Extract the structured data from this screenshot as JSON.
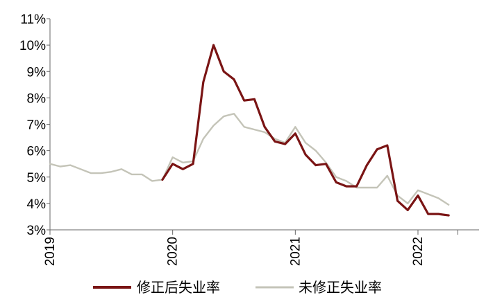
{
  "chart_data": {
    "type": "line",
    "title": "",
    "xlabel": "",
    "ylabel": "",
    "x_tick_labels": [
      "2019",
      "2020",
      "2021",
      "2022"
    ],
    "y_tick_labels": [
      "3%",
      "4%",
      "5%",
      "6%",
      "7%",
      "8%",
      "9%",
      "10%",
      "11%"
    ],
    "ylim": [
      3,
      11
    ],
    "xlim": [
      "2019-01",
      "2022-05"
    ],
    "grid": false,
    "legend_position": "bottom",
    "series": [
      {
        "name": "修正后失业率",
        "color": "#7a1414",
        "points": [
          [
            "2019-12",
            4.9
          ],
          [
            "2020-01",
            5.5
          ],
          [
            "2020-02",
            5.3
          ],
          [
            "2020-03",
            5.5
          ],
          [
            "2020-04",
            8.6
          ],
          [
            "2020-05",
            10.0
          ],
          [
            "2020-06",
            9.0
          ],
          [
            "2020-07",
            8.7
          ],
          [
            "2020-08",
            7.9
          ],
          [
            "2020-09",
            7.95
          ],
          [
            "2020-10",
            6.9
          ],
          [
            "2020-11",
            6.35
          ],
          [
            "2020-12",
            6.25
          ],
          [
            "2021-01",
            6.65
          ],
          [
            "2021-02",
            5.85
          ],
          [
            "2021-03",
            5.45
          ],
          [
            "2021-04",
            5.5
          ],
          [
            "2021-05",
            4.8
          ],
          [
            "2021-06",
            4.65
          ],
          [
            "2021-07",
            4.65
          ],
          [
            "2021-08",
            5.45
          ],
          [
            "2021-09",
            6.05
          ],
          [
            "2021-10",
            6.2
          ],
          [
            "2021-11",
            4.1
          ],
          [
            "2021-12",
            3.75
          ],
          [
            "2022-01",
            4.3
          ],
          [
            "2022-02",
            3.6
          ],
          [
            "2022-03",
            3.6
          ],
          [
            "2022-04",
            3.55
          ]
        ]
      },
      {
        "name": "未修正失业率",
        "color": "#c4c4b8",
        "points": [
          [
            "2019-01",
            5.5
          ],
          [
            "2019-02",
            5.4
          ],
          [
            "2019-03",
            5.45
          ],
          [
            "2019-04",
            5.3
          ],
          [
            "2019-05",
            5.15
          ],
          [
            "2019-06",
            5.15
          ],
          [
            "2019-07",
            5.2
          ],
          [
            "2019-08",
            5.3
          ],
          [
            "2019-09",
            5.1
          ],
          [
            "2019-10",
            5.1
          ],
          [
            "2019-11",
            4.85
          ],
          [
            "2019-12",
            4.9
          ],
          [
            "2020-01",
            5.75
          ],
          [
            "2020-02",
            5.55
          ],
          [
            "2020-03",
            5.6
          ],
          [
            "2020-04",
            6.45
          ],
          [
            "2020-05",
            6.95
          ],
          [
            "2020-06",
            7.3
          ],
          [
            "2020-07",
            7.4
          ],
          [
            "2020-08",
            6.9
          ],
          [
            "2020-09",
            6.8
          ],
          [
            "2020-10",
            6.7
          ],
          [
            "2020-11",
            6.45
          ],
          [
            "2020-12",
            6.3
          ],
          [
            "2021-01",
            6.9
          ],
          [
            "2021-02",
            6.3
          ],
          [
            "2021-03",
            6.0
          ],
          [
            "2021-04",
            5.55
          ],
          [
            "2021-05",
            5.0
          ],
          [
            "2021-06",
            4.85
          ],
          [
            "2021-07",
            4.6
          ],
          [
            "2021-08",
            4.6
          ],
          [
            "2021-09",
            4.6
          ],
          [
            "2021-10",
            5.05
          ],
          [
            "2021-11",
            4.3
          ],
          [
            "2021-12",
            4.0
          ],
          [
            "2022-01",
            4.5
          ],
          [
            "2022-02",
            4.35
          ],
          [
            "2022-03",
            4.2
          ],
          [
            "2022-04",
            3.95
          ]
        ]
      }
    ]
  }
}
